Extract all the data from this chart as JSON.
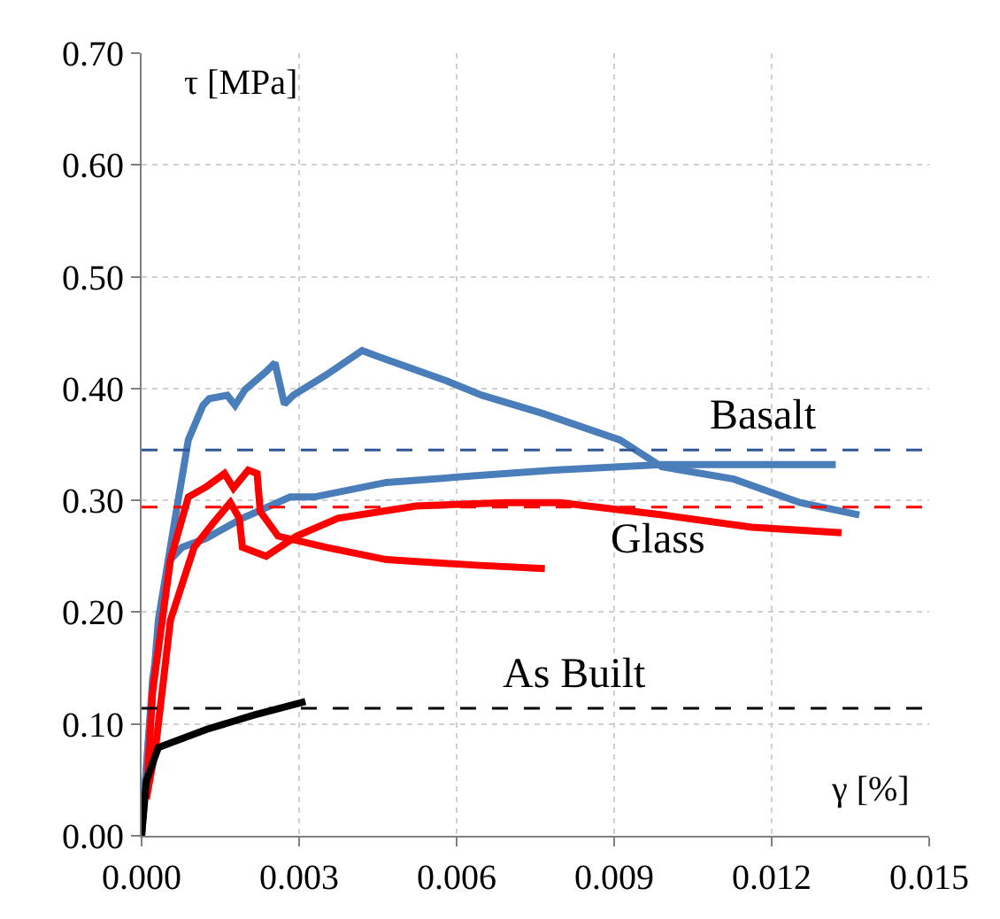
{
  "chart_data": {
    "type": "line",
    "xlabel": "γ [%]",
    "ylabel": "τ [MPa]",
    "series": [
      {
        "color": "#4a7ebb",
        "x": [
          0,
          9e-05,
          0.00032,
          0.00066,
          0.00089,
          0.00117,
          0.00129,
          0.00163,
          0.00178,
          0.00197,
          0.00237,
          0.00254,
          0.00272,
          0.00289,
          0.00351,
          0.0042,
          0.00454,
          0.0058,
          0.00648,
          0.00762,
          0.00911,
          0.00991,
          0.01128,
          0.01254,
          0.01367
        ],
        "values": [
          0,
          0.06,
          0.193,
          0.29,
          0.354,
          0.385,
          0.391,
          0.394,
          0.385,
          0.399,
          0.415,
          0.423,
          0.386,
          0.394,
          0.412,
          0.434,
          0.428,
          0.407,
          0.394,
          0.378,
          0.354,
          0.33,
          0.319,
          0.298,
          0.287
        ]
      },
      {
        "color": "#4a7ebb",
        "x": [
          0,
          0.00021,
          0.00055,
          0.00077,
          0.00123,
          0.00192,
          0.00283,
          0.00329,
          0.00466,
          0.00637,
          0.00785,
          0.00991,
          0.01322
        ],
        "values": [
          0,
          0.14,
          0.247,
          0.258,
          0.266,
          0.284,
          0.303,
          0.303,
          0.316,
          0.322,
          0.327,
          0.332,
          0.332
        ]
      },
      {
        "color": "#ff0000",
        "x": [
          9e-05,
          0.00021,
          0.00055,
          0.00089,
          0.00123,
          0.00158,
          0.00175,
          0.00203,
          0.0022,
          0.00226,
          0.0026,
          0.00351,
          0.00466,
          0.00637,
          0.00768
        ],
        "values": [
          0.033,
          0.129,
          0.247,
          0.303,
          0.312,
          0.324,
          0.311,
          0.327,
          0.324,
          0.29,
          0.268,
          0.258,
          0.247,
          0.242,
          0.239
        ]
      },
      {
        "color": "#ff0000",
        "x": [
          9e-05,
          0.00026,
          0.00055,
          0.001,
          0.00135,
          0.00169,
          0.00186,
          0.00192,
          0.00237,
          0.00295,
          0.00374,
          0.00523,
          0.00694,
          0.00797,
          0.00991,
          0.01162,
          0.01333
        ],
        "values": [
          0.033,
          0.076,
          0.193,
          0.258,
          0.279,
          0.298,
          0.284,
          0.258,
          0.25,
          0.268,
          0.284,
          0.295,
          0.298,
          0.298,
          0.287,
          0.276,
          0.271
        ]
      },
      {
        "color": "#000000",
        "x": [
          0,
          9e-05,
          0.00032,
          0.00123,
          0.00214,
          0.00312
        ],
        "values": [
          0,
          0.049,
          0.079,
          0.095,
          0.108,
          0.12
        ]
      }
    ],
    "ref_lines": [
      {
        "axis": "y",
        "value": 0.345,
        "label": "Basalt",
        "color": "#2f5597",
        "line_style": "dashed"
      },
      {
        "axis": "y",
        "value": 0.294,
        "label": "Glass",
        "color": "#ff0000",
        "line_style": "dashed"
      },
      {
        "axis": "y",
        "value": 0.114,
        "label": "As Built",
        "color": "#000000",
        "line_style": "dashed"
      }
    ],
    "xlim": [
      0,
      0.015
    ],
    "ylim": [
      0,
      0.7
    ],
    "xticks": [
      {
        "value": 0,
        "label": "0.000"
      },
      {
        "value": 0.003,
        "label": "0.003"
      },
      {
        "value": 0.006,
        "label": "0.006"
      },
      {
        "value": 0.009,
        "label": "0.009"
      },
      {
        "value": 0.012,
        "label": "0.012"
      },
      {
        "value": 0.015,
        "label": "0.015"
      }
    ],
    "yticks": [
      {
        "value": 0,
        "label": "0.00"
      },
      {
        "value": 0.1,
        "label": "0.10"
      },
      {
        "value": 0.2,
        "label": "0.20"
      },
      {
        "value": 0.3,
        "label": "0.30"
      },
      {
        "value": 0.4,
        "label": "0.40"
      },
      {
        "value": 0.5,
        "label": "0.50"
      },
      {
        "value": 0.6,
        "label": "0.60"
      },
      {
        "value": 0.7,
        "label": "0.70"
      }
    ],
    "grid": true,
    "marker": "none",
    "line_style": "solid"
  }
}
